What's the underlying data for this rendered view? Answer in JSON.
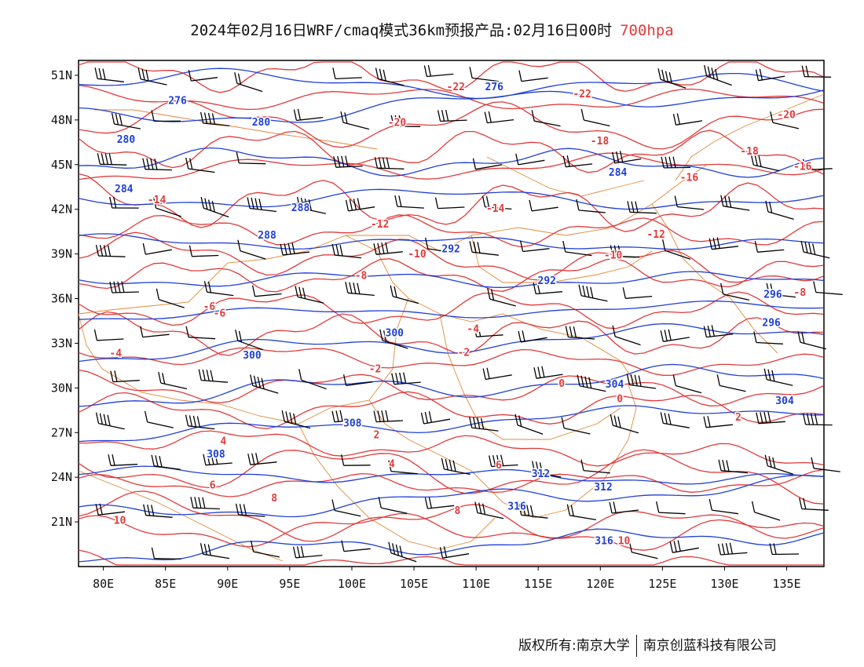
{
  "title": {
    "text": "2024年02月16日WRF/cmaq模式36km预报产品:02月16日00时",
    "level": "700hpa"
  },
  "colors": {
    "temperature": "#e23a3a",
    "height": "#1f3fd8",
    "border": "#e08a3a",
    "barb": "#000000"
  },
  "axes": {
    "lon_ticks": [
      "80E",
      "85E",
      "90E",
      "95E",
      "100E",
      "105E",
      "110E",
      "115E",
      "120E",
      "125E",
      "130E",
      "135E"
    ],
    "lat_ticks": [
      "21N",
      "24N",
      "27N",
      "30N",
      "33N",
      "36N",
      "39N",
      "42N",
      "45N",
      "48N",
      "51N"
    ],
    "lon_range": [
      78,
      138
    ],
    "lat_range": [
      18,
      52
    ]
  },
  "temperature_labels": [
    "-22",
    "-20",
    "-18",
    "-16",
    "-14",
    "-12",
    "-10",
    "-8",
    "-6",
    "-4",
    "-2",
    "0",
    "2",
    "4",
    "6",
    "8",
    "10"
  ],
  "height_labels": [
    "276",
    "280",
    "284",
    "288",
    "292",
    "296",
    "300",
    "304",
    "308",
    "312",
    "316"
  ],
  "footer": {
    "left": "版权所有:南京大学",
    "right": "南京创蓝科技有限公司"
  }
}
